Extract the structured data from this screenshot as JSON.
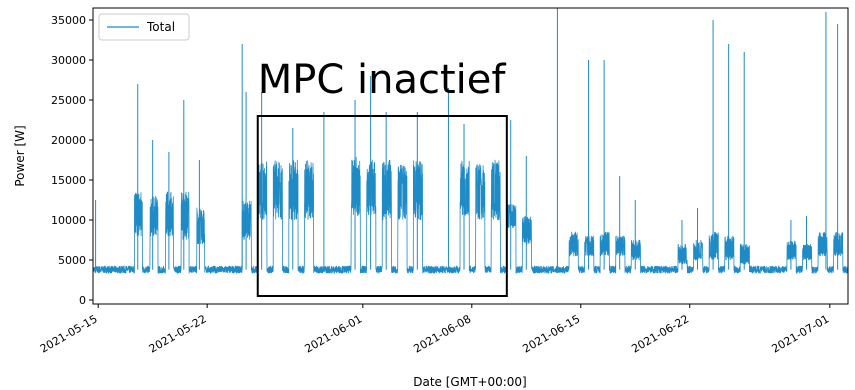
{
  "chart_data": {
    "type": "line",
    "xlabel": "Date [GMT+00:00]",
    "ylabel": "Power [W]",
    "x_range": [
      "2021-05-14T16:00",
      "2021-07-02T04:00"
    ],
    "ylim": [
      -500,
      36500
    ],
    "x_ticks": [
      {
        "date": "2021-05-15",
        "label": "2021-05-15"
      },
      {
        "date": "2021-05-22",
        "label": "2021-05-22"
      },
      {
        "date": "2021-06-01",
        "label": "2021-06-01"
      },
      {
        "date": "2021-06-08",
        "label": "2021-06-08"
      },
      {
        "date": "2021-06-15",
        "label": "2021-06-15"
      },
      {
        "date": "2021-06-22",
        "label": "2021-06-22"
      },
      {
        "date": "2021-07-01",
        "label": "2021-07-01"
      }
    ],
    "y_ticks": [
      0,
      5000,
      10000,
      15000,
      20000,
      25000,
      30000,
      35000
    ],
    "grid": false,
    "legend": {
      "position": "top-left",
      "entries": [
        "Total"
      ]
    },
    "series": [
      {
        "name": "Total",
        "color": "#1f8bc6",
        "baseline": 3800,
        "spikes": [
          {
            "date": "2021-05-14T20:00",
            "value": 12500
          },
          {
            "date": "2021-05-17T13:00",
            "value": 27000
          },
          {
            "date": "2021-05-18T12:00",
            "value": 20000
          },
          {
            "date": "2021-05-19T13:00",
            "value": 18500
          },
          {
            "date": "2021-05-20T12:00",
            "value": 25000
          },
          {
            "date": "2021-05-21T12:00",
            "value": 17500
          },
          {
            "date": "2021-05-24T06:00",
            "value": 32000
          },
          {
            "date": "2021-05-24T12:00",
            "value": 26000
          },
          {
            "date": "2021-05-25T12:00",
            "value": 26000
          },
          {
            "date": "2021-05-27T12:00",
            "value": 21500
          },
          {
            "date": "2021-05-29T12:00",
            "value": 23500
          },
          {
            "date": "2021-05-31T12:00",
            "value": 25000
          },
          {
            "date": "2021-06-01T12:00",
            "value": 28000
          },
          {
            "date": "2021-06-02T12:00",
            "value": 23500
          },
          {
            "date": "2021-06-04T12:00",
            "value": 23500
          },
          {
            "date": "2021-06-06T12:00",
            "value": 26500
          },
          {
            "date": "2021-06-07T12:00",
            "value": 22000
          },
          {
            "date": "2021-06-10T12:00",
            "value": 22500
          },
          {
            "date": "2021-06-11T12:00",
            "value": 18000
          },
          {
            "date": "2021-06-13T12:00",
            "value": 36500
          },
          {
            "date": "2021-06-15T12:00",
            "value": 30000
          },
          {
            "date": "2021-06-16T12:00",
            "value": 30000
          },
          {
            "date": "2021-06-17T12:00",
            "value": 15500
          },
          {
            "date": "2021-06-18T12:00",
            "value": 12500
          },
          {
            "date": "2021-06-21T12:00",
            "value": 10000
          },
          {
            "date": "2021-06-22T12:00",
            "value": 11500
          },
          {
            "date": "2021-06-23T12:00",
            "value": 35000
          },
          {
            "date": "2021-06-24T12:00",
            "value": 32000
          },
          {
            "date": "2021-06-25T12:00",
            "value": 31000
          },
          {
            "date": "2021-06-28T12:00",
            "value": 10000
          },
          {
            "date": "2021-06-29T12:00",
            "value": 10500
          },
          {
            "date": "2021-06-30T18:00",
            "value": 36000
          },
          {
            "date": "2021-07-01T12:00",
            "value": 34500
          }
        ],
        "busy_periods": [
          {
            "start": "2021-05-17T08:00",
            "end": "2021-05-17T20:00",
            "low": 8000,
            "high": 13500
          },
          {
            "start": "2021-05-18T08:00",
            "end": "2021-05-18T20:00",
            "low": 8000,
            "high": 13000
          },
          {
            "start": "2021-05-19T08:00",
            "end": "2021-05-19T20:00",
            "low": 8000,
            "high": 13500
          },
          {
            "start": "2021-05-20T08:00",
            "end": "2021-05-20T20:00",
            "low": 7500,
            "high": 13500
          },
          {
            "start": "2021-05-21T08:00",
            "end": "2021-05-21T20:00",
            "low": 7000,
            "high": 11500
          },
          {
            "start": "2021-05-24T06:00",
            "end": "2021-05-24T20:00",
            "low": 7500,
            "high": 12500
          },
          {
            "start": "2021-05-25T06:00",
            "end": "2021-05-25T20:00",
            "low": 10000,
            "high": 17500
          },
          {
            "start": "2021-05-26T06:00",
            "end": "2021-05-26T20:00",
            "low": 10000,
            "high": 17500
          },
          {
            "start": "2021-05-27T06:00",
            "end": "2021-05-27T20:00",
            "low": 10000,
            "high": 17500
          },
          {
            "start": "2021-05-28T06:00",
            "end": "2021-05-28T20:00",
            "low": 10000,
            "high": 17500
          },
          {
            "start": "2021-05-31T06:00",
            "end": "2021-05-31T20:00",
            "low": 10500,
            "high": 18000
          },
          {
            "start": "2021-06-01T06:00",
            "end": "2021-06-01T20:00",
            "low": 10500,
            "high": 17500
          },
          {
            "start": "2021-06-02T06:00",
            "end": "2021-06-02T20:00",
            "low": 10000,
            "high": 17500
          },
          {
            "start": "2021-06-03T06:00",
            "end": "2021-06-03T20:00",
            "low": 10000,
            "high": 17000
          },
          {
            "start": "2021-06-04T06:00",
            "end": "2021-06-04T20:00",
            "low": 10000,
            "high": 17500
          },
          {
            "start": "2021-06-07T06:00",
            "end": "2021-06-07T20:00",
            "low": 10500,
            "high": 17500
          },
          {
            "start": "2021-06-08T06:00",
            "end": "2021-06-08T20:00",
            "low": 10000,
            "high": 17000
          },
          {
            "start": "2021-06-09T06:00",
            "end": "2021-06-09T20:00",
            "low": 10000,
            "high": 17500
          },
          {
            "start": "2021-06-10T06:00",
            "end": "2021-06-10T20:00",
            "low": 9000,
            "high": 12000
          },
          {
            "start": "2021-06-11T06:00",
            "end": "2021-06-11T20:00",
            "low": 7000,
            "high": 10500
          },
          {
            "start": "2021-06-14T06:00",
            "end": "2021-06-14T20:00",
            "low": 5500,
            "high": 8500
          },
          {
            "start": "2021-06-15T06:00",
            "end": "2021-06-15T20:00",
            "low": 5500,
            "high": 8000
          },
          {
            "start": "2021-06-16T06:00",
            "end": "2021-06-16T20:00",
            "low": 5500,
            "high": 8500
          },
          {
            "start": "2021-06-17T06:00",
            "end": "2021-06-17T20:00",
            "low": 5500,
            "high": 8000
          },
          {
            "start": "2021-06-18T06:00",
            "end": "2021-06-18T20:00",
            "low": 5000,
            "high": 7500
          },
          {
            "start": "2021-06-21T06:00",
            "end": "2021-06-21T20:00",
            "low": 4500,
            "high": 7000
          },
          {
            "start": "2021-06-22T06:00",
            "end": "2021-06-22T20:00",
            "low": 5000,
            "high": 7500
          },
          {
            "start": "2021-06-23T06:00",
            "end": "2021-06-23T20:00",
            "low": 5000,
            "high": 8500
          },
          {
            "start": "2021-06-24T06:00",
            "end": "2021-06-24T20:00",
            "low": 5000,
            "high": 8000
          },
          {
            "start": "2021-06-25T06:00",
            "end": "2021-06-25T20:00",
            "low": 4500,
            "high": 7000
          },
          {
            "start": "2021-06-28T06:00",
            "end": "2021-06-28T20:00",
            "low": 5000,
            "high": 7500
          },
          {
            "start": "2021-06-29T06:00",
            "end": "2021-06-29T20:00",
            "low": 5000,
            "high": 7000
          },
          {
            "start": "2021-06-30T06:00",
            "end": "2021-06-30T20:00",
            "low": 5500,
            "high": 8500
          },
          {
            "start": "2021-07-01T06:00",
            "end": "2021-07-01T20:00",
            "low": 5500,
            "high": 8500
          }
        ]
      }
    ],
    "annotations": [
      {
        "text": "MPC inactief",
        "box": {
          "start": "2021-05-25T06:00",
          "end": "2021-06-10T06:00",
          "ymin": 500,
          "ymax": 23000
        }
      }
    ]
  }
}
